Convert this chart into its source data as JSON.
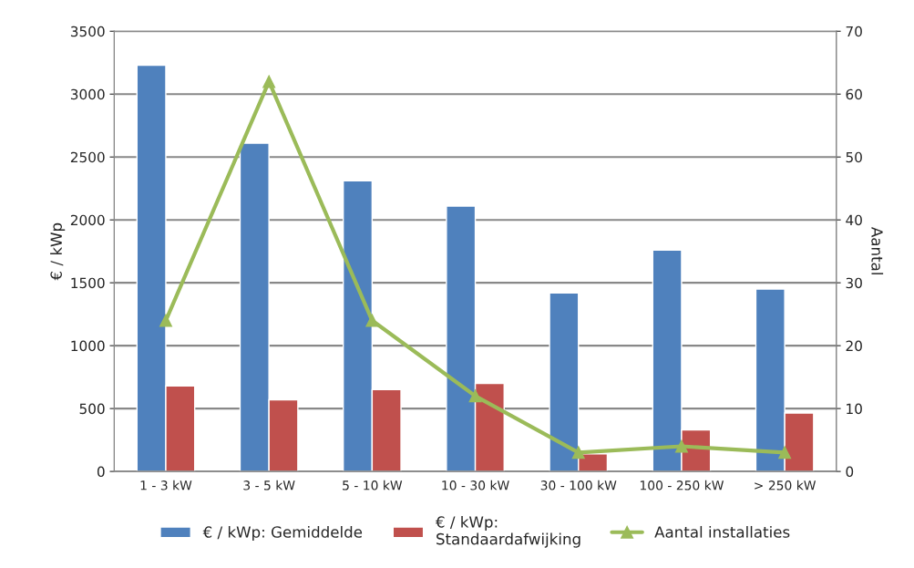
{
  "chart_data": {
    "type": "bar",
    "categories": [
      "1 - 3 kW",
      "3 - 5 kW",
      "5 - 10 kW",
      "10 - 30 kW",
      "30 - 100 kW",
      "100 - 250 kW",
      "> 250 kW"
    ],
    "series": [
      {
        "name": "€ / kWp: Gemiddelde",
        "color": "#4f81bd",
        "values": [
          3230,
          2610,
          2310,
          2110,
          1420,
          1760,
          1450
        ]
      },
      {
        "name": "€ / kWp: Standaardafwijking",
        "color": "#c0504d",
        "values": [
          680,
          570,
          650,
          700,
          140,
          330,
          465
        ]
      },
      {
        "name": "Aantal installaties",
        "type": "line",
        "axis": "y2",
        "color": "#9bbb59",
        "marker": "triangle",
        "values": [
          24,
          62,
          24,
          12,
          3,
          4,
          3
        ]
      }
    ],
    "ylabel": "€ / kWp",
    "y2label": "Aantal",
    "ylim": [
      0,
      3500
    ],
    "yticks": [
      0,
      500,
      1000,
      1500,
      2000,
      2500,
      3000,
      3500
    ],
    "y2lim": [
      0,
      70
    ],
    "y2ticks": [
      0,
      10,
      20,
      30,
      40,
      50,
      60,
      70
    ],
    "grid": "y",
    "legend": "bottom"
  }
}
